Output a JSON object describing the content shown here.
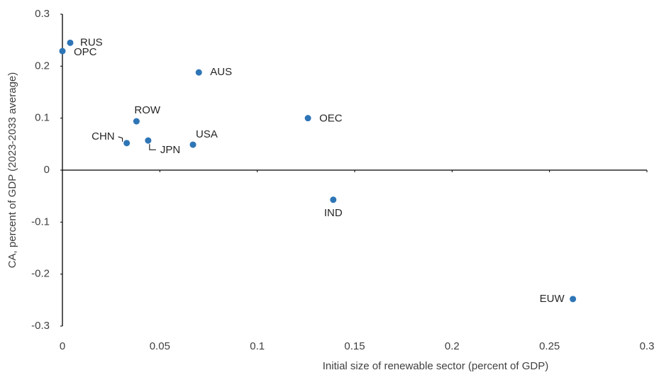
{
  "chart_data": {
    "type": "scatter",
    "xlabel": "Initial size of renewable sector (percent of GDP)",
    "ylabel": "CA, percent of GDP (2023-2033 average)",
    "xlim": [
      0,
      0.3
    ],
    "xticks": [
      0,
      0.05,
      0.1,
      0.15,
      0.2,
      0.25,
      0.3
    ],
    "ylim": [
      -0.3,
      0.3
    ],
    "yticks": [
      -0.3,
      -0.2,
      -0.1,
      0,
      0.1,
      0.2,
      0.3
    ],
    "grid": false,
    "series": [
      {
        "color": "#2e75b6",
        "labels": [
          "RUS",
          "OPC",
          "AUS",
          "ROW",
          "OEC",
          "CHN",
          "JPN",
          "USA",
          "IND",
          "EUW"
        ],
        "x": [
          0.004,
          0,
          0.07,
          0.038,
          0.126,
          0.033,
          0.044,
          0.067,
          0.139,
          0.262
        ],
        "values": [
          0.245,
          0.229,
          0.188,
          0.094,
          0.1,
          0.052,
          0.057,
          0.049,
          -0.057,
          -0.248
        ]
      }
    ]
  }
}
